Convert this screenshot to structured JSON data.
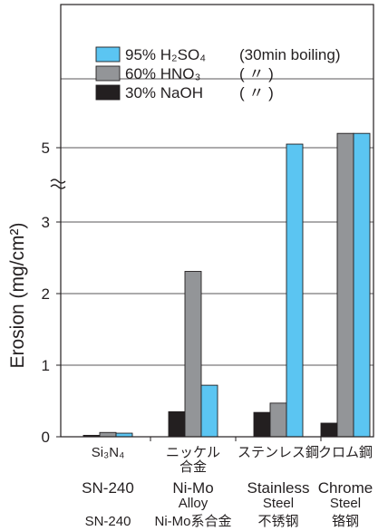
{
  "chart_data": {
    "type": "bar",
    "ylabel": "Erosion (mg/cm²)",
    "ylim": [
      0,
      5.5
    ],
    "axis_break": "between 3 and 5",
    "yticks": [
      "0",
      "1",
      "2",
      "3",
      "5"
    ],
    "grid": "horizontal",
    "legend_position": "top-right",
    "categories": [
      {
        "line1": "Si₃N₄",
        "line1b": "",
        "line2": "SN-240",
        "line2b": "",
        "line3": "SN-240"
      },
      {
        "line1": "ニッケル",
        "line1b": "合金",
        "line2": "Ni-Mo",
        "line2b": "Alloy",
        "line3": "Ni-Mo系合金"
      },
      {
        "line1": "ステンレス鋼",
        "line1b": "",
        "line2": "Stainless",
        "line2b": "Steel",
        "line3": "不锈钢"
      },
      {
        "line1": "クロム鋼",
        "line1b": "",
        "line2": "Chrome",
        "line2b": "Steel",
        "line3": "铬钢"
      }
    ],
    "series": [
      {
        "name": "30% NaOH",
        "note": "(   〃   )",
        "color": "#231f20",
        "values": [
          0.02,
          0.35,
          0.34,
          0.19
        ]
      },
      {
        "name": "60% HNO₃",
        "note": "(   〃   )",
        "color": "#939598",
        "values": [
          0.06,
          2.31,
          0.47,
          5.2
        ]
      },
      {
        "name": "95% H₂SO₄",
        "note": "(30min boiling)",
        "color": "#5bc5f2",
        "values": [
          0.05,
          0.72,
          5.05,
          5.2
        ]
      }
    ]
  }
}
